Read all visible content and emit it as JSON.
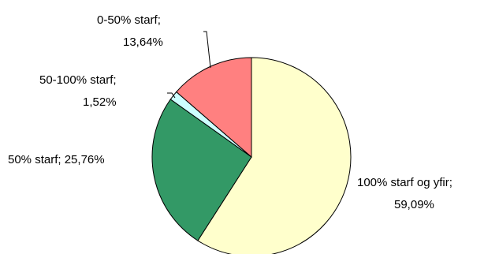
{
  "chart_data": {
    "type": "pie",
    "start_angle_deg": 0,
    "direction": "clockwise",
    "slices": [
      {
        "label": "100% starf og yfir",
        "value": 59.09,
        "value_label": "59,09%",
        "color": "#FFFFCC"
      },
      {
        "label": "50% starf",
        "value": 25.76,
        "value_label": "25,76%",
        "color": "#339966"
      },
      {
        "label": "50-100% starf",
        "value": 1.52,
        "value_label": "1,52%",
        "color": "#CCFFFF"
      },
      {
        "label": "0-50% starf",
        "value": 13.64,
        "value_label": "13,64%",
        "color": "#FF8080"
      }
    ]
  }
}
